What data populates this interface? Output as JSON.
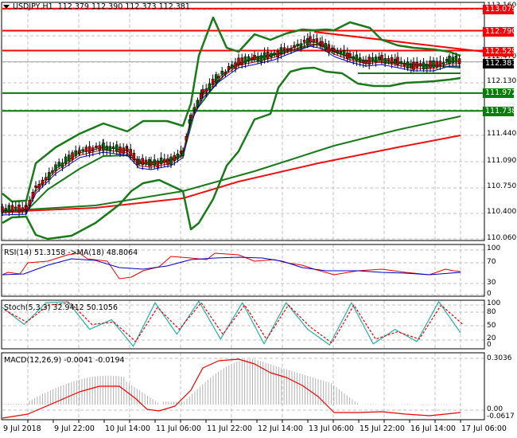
{
  "header": {
    "symbol": "USDJPY,H1",
    "ohlc": "112.379 112.390 112.373 112.381",
    "title_full": "USDJPY,H1  112.379 112.390 112.373 112.381"
  },
  "colors": {
    "resistance": "#ff0000",
    "support": "#008000",
    "bollinger": "#1a7a1a",
    "ma_long_green": "#1a7a1a",
    "ma_long_red": "#ee1111",
    "ma_fast_red": "#dd0000",
    "ma_fast_blue": "#0000dd",
    "ma_fast_green": "#007700",
    "current_price_bg": "#000000",
    "rsi": "#ee0000",
    "rsi_ma": "#0000cc",
    "stoch_main": "#20b2aa",
    "stoch_signal": "#ee0000",
    "macd_hist": "#b0b0b0",
    "macd_signal": "#ee0000",
    "grid": "#c0c0c0"
  },
  "price_axis": {
    "ticks": [
      "113.160",
      "112.470",
      "112.130",
      "111.440",
      "111.090",
      "110.750",
      "110.400",
      "110.060"
    ],
    "price_labels": [
      {
        "value": "113.079",
        "color": "#ff0000",
        "y": 12
      },
      {
        "value": "112.790",
        "color": "#ff0000",
        "y": 40
      },
      {
        "value": "112.529",
        "color": "#ff0000",
        "y": 65
      },
      {
        "value": "112.381",
        "color": "#000000",
        "y": 80
      },
      {
        "value": "111.972",
        "color": "#008000",
        "y": 117
      },
      {
        "value": "111.738",
        "color": "#008000",
        "y": 140
      }
    ]
  },
  "rsi": {
    "label": "RSI(14) 51.3158  ->MA(18) 48.8064",
    "ticks": [
      "100",
      "70",
      "30",
      "0"
    ]
  },
  "stoch": {
    "label": "Stoch(5,3,3) 32.9412 50.1056",
    "ticks": [
      "100",
      "80",
      "50",
      "20",
      "0"
    ]
  },
  "macd": {
    "label": "MACD(12,26,9) -0.0041 -0.0194",
    "ticks": [
      "0.3036",
      "0.00",
      "-0.0617"
    ]
  },
  "time_axis": [
    "9 Jul 2018",
    "9 Jul 22:00",
    "10 Jul 14:00",
    "11 Jul 06:00",
    "11 Jul 22:00",
    "12 Jul 14:00",
    "13 Jul 06:00",
    "15 Jul 22:00",
    "16 Jul 14:00",
    "17 Jul 06:00"
  ],
  "chart_data": [
    {
      "type": "line",
      "title": "USDJPY,H1",
      "subtitle": "112.379 112.390 112.373 112.381",
      "xlabel": "",
      "ylabel": "",
      "ylim": [
        110.06,
        113.16
      ],
      "grid": true,
      "categories": [
        "9 Jul 2018",
        "9 Jul 22:00",
        "10 Jul 14:00",
        "11 Jul 06:00",
        "11 Jul 22:00",
        "12 Jul 14:00",
        "13 Jul 06:00",
        "15 Jul 22:00",
        "16 Jul 14:00",
        "17 Jul 06:00"
      ],
      "series": [
        {
          "name": "Close",
          "values": [
            110.45,
            111.15,
            111.1,
            111.2,
            112.45,
            112.6,
            112.75,
            112.45,
            112.35,
            112.38
          ]
        },
        {
          "name": "Bollinger Upper",
          "values": [
            110.7,
            111.55,
            111.75,
            112.2,
            113.0,
            112.8,
            112.8,
            112.6,
            112.45,
            112.52
          ]
        },
        {
          "name": "Bollinger Lower",
          "values": [
            110.3,
            110.1,
            110.8,
            110.2,
            111.0,
            111.9,
            112.25,
            112.15,
            112.22,
            112.2
          ]
        },
        {
          "name": "MA Long Green",
          "values": [
            110.4,
            110.58,
            110.7,
            110.8,
            111.0,
            111.25,
            111.45,
            111.6,
            111.7,
            111.78
          ]
        },
        {
          "name": "MA Long Red",
          "values": [
            110.42,
            110.48,
            110.55,
            110.63,
            110.8,
            111.0,
            111.15,
            111.28,
            111.4,
            111.49
          ]
        }
      ],
      "horizontal_levels": {
        "resistance": [
          113.079,
          112.79,
          112.529
        ],
        "support": [
          111.972,
          111.738
        ],
        "current": 112.381
      },
      "trendline": {
        "from": {
          "time": "13 Jul 06:00",
          "price": 112.79
        },
        "to": {
          "time": "17 Jul 06:00",
          "price": 112.529
        }
      }
    },
    {
      "type": "line",
      "title": "RSI(14) 51.3158 ->MA(18) 48.8064",
      "ylim": [
        0,
        100
      ],
      "yticks": [
        0,
        30,
        70,
        100
      ],
      "series": [
        {
          "name": "RSI(14)",
          "values": [
            50,
            55,
            72,
            78,
            65,
            60,
            55,
            68,
            75,
            74,
            60,
            52,
            48,
            50,
            51
          ]
        },
        {
          "name": "MA(18)",
          "values": [
            51,
            52,
            60,
            68,
            70,
            64,
            58,
            62,
            70,
            72,
            68,
            58,
            52,
            48,
            49
          ]
        }
      ]
    },
    {
      "type": "line",
      "title": "Stoch(5,3,3) 32.9412 50.1056",
      "ylim": [
        0,
        100
      ],
      "yticks": [
        0,
        20,
        50,
        80,
        100
      ],
      "series": [
        {
          "name": "%K",
          "values": [
            85,
            50,
            95,
            97,
            40,
            60,
            5,
            95,
            30,
            98,
            20,
            95,
            10,
            95,
            40,
            8,
            95,
            10,
            40,
            15,
            97,
            33
          ]
        },
        {
          "name": "%D",
          "values": [
            80,
            55,
            90,
            95,
            50,
            55,
            15,
            85,
            40,
            95,
            30,
            90,
            20,
            90,
            45,
            12,
            90,
            20,
            35,
            20,
            90,
            50
          ]
        }
      ]
    },
    {
      "type": "bar",
      "title": "MACD(12,26,9) -0.0041 -0.0194",
      "ylim": [
        -0.0617,
        0.3036
      ],
      "series": [
        {
          "name": "MACD histogram",
          "values": [
            -0.01,
            0.05,
            0.14,
            0.16,
            0.13,
            0.03,
            0.06,
            0.22,
            0.3,
            0.28,
            0.2,
            0.16,
            0.08,
            0.01,
            -0.01,
            -0.005,
            -0.004
          ]
        },
        {
          "name": "Signal",
          "values": [
            -0.05,
            -0.01,
            0.08,
            0.14,
            0.12,
            0.02,
            0.02,
            0.18,
            0.29,
            0.28,
            0.21,
            0.17,
            0.08,
            -0.02,
            -0.01,
            -0.03,
            -0.019
          ]
        }
      ]
    }
  ]
}
